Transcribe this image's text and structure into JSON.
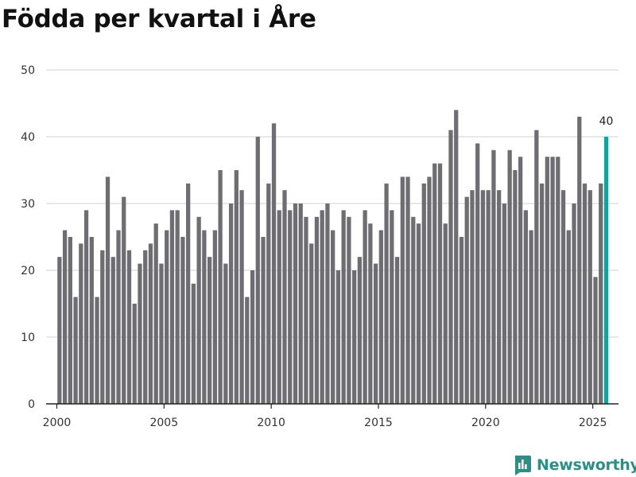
{
  "title": "Födda per kvartal i Åre",
  "brand": {
    "name": "Newsworthy",
    "icon": "newsworthy-logo-icon"
  },
  "colors": {
    "bar": "#6d6d72",
    "highlight": "#13a39a",
    "grid": "#d9d9d9",
    "axis": "#222222"
  },
  "chart_data": {
    "type": "bar",
    "title": "Födda per kvartal i Åre",
    "xlabel": "",
    "ylabel": "",
    "ylim": [
      0,
      50
    ],
    "yticks": [
      0,
      10,
      20,
      30,
      40,
      50
    ],
    "xlim": [
      1999.5,
      2026.2
    ],
    "xticks": [
      2000,
      2005,
      2010,
      2015,
      2020,
      2025
    ],
    "grid": true,
    "start_year": 2000,
    "start_quarter": 1,
    "values": [
      22,
      26,
      25,
      16,
      24,
      29,
      25,
      16,
      23,
      34,
      22,
      26,
      31,
      23,
      15,
      21,
      23,
      24,
      27,
      21,
      26,
      29,
      29,
      25,
      33,
      18,
      28,
      26,
      22,
      26,
      35,
      21,
      30,
      35,
      32,
      16,
      20,
      40,
      25,
      33,
      42,
      29,
      32,
      29,
      30,
      30,
      28,
      24,
      28,
      29,
      30,
      26,
      20,
      29,
      28,
      20,
      22,
      29,
      27,
      21,
      26,
      33,
      29,
      22,
      34,
      34,
      28,
      27,
      33,
      34,
      36,
      36,
      27,
      41,
      44,
      25,
      31,
      32,
      39,
      32,
      32,
      38,
      32,
      30,
      38,
      35,
      37,
      29,
      26,
      41,
      33,
      37,
      37,
      37,
      32,
      26,
      30,
      43,
      33,
      32,
      19,
      33,
      40
    ],
    "highlight_index": 102,
    "highlight_label": "40"
  }
}
